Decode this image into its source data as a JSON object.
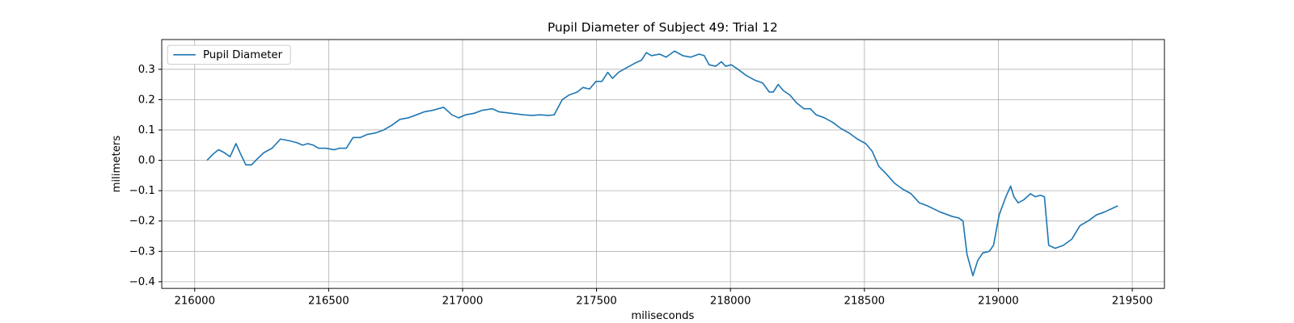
{
  "chart_data": {
    "type": "line",
    "title": "Pupil Diameter of Subject 49: Trial 12",
    "x_label": "miliseconds",
    "y_label": "milimeters",
    "x": [
      216046,
      216068,
      216089,
      216111,
      216132,
      216154,
      216172,
      216191,
      216212,
      216234,
      216258,
      216289,
      216320,
      216351,
      216382,
      216403,
      216422,
      216443,
      216462,
      216489,
      216520,
      216542,
      216566,
      216591,
      216618,
      216643,
      216674,
      216705,
      216735,
      216766,
      216797,
      216828,
      216858,
      216889,
      216929,
      216960,
      216985,
      217012,
      217043,
      217074,
      217111,
      217135,
      217182,
      217228,
      217258,
      217289,
      217320,
      217342,
      217372,
      217397,
      217428,
      217449,
      217474,
      217498,
      217520,
      217542,
      217560,
      217582,
      217612,
      217643,
      217668,
      217686,
      217705,
      217735,
      217760,
      217791,
      217822,
      217852,
      217883,
      217902,
      217920,
      217945,
      217966,
      217982,
      218003,
      218028,
      218058,
      218089,
      218120,
      218145,
      218160,
      218178,
      218197,
      218222,
      218246,
      218274,
      218298,
      218320,
      218351,
      218382,
      218412,
      218443,
      218474,
      218505,
      218529,
      218554,
      218582,
      218612,
      218643,
      218674,
      218705,
      218735,
      218782,
      218828,
      218852,
      218868,
      218883,
      218905,
      218923,
      218942,
      218966,
      218982,
      219003,
      219028,
      219046,
      219058,
      219074,
      219095,
      219120,
      219138,
      219157,
      219172,
      219188,
      219212,
      219243,
      219274,
      219305,
      219335,
      219366,
      219397,
      219446
    ],
    "series": [
      {
        "name": "Pupil Diameter",
        "color": "#1f77b4",
        "values": [
          0.0,
          0.02,
          0.035,
          0.025,
          0.012,
          0.055,
          0.02,
          -0.015,
          -0.015,
          0.005,
          0.025,
          0.04,
          0.07,
          0.065,
          0.058,
          0.05,
          0.055,
          0.05,
          0.04,
          0.04,
          0.035,
          0.04,
          0.04,
          0.075,
          0.075,
          0.085,
          0.09,
          0.1,
          0.115,
          0.135,
          0.14,
          0.15,
          0.16,
          0.165,
          0.175,
          0.15,
          0.14,
          0.15,
          0.155,
          0.165,
          0.17,
          0.16,
          0.155,
          0.15,
          0.148,
          0.15,
          0.148,
          0.15,
          0.2,
          0.215,
          0.225,
          0.24,
          0.235,
          0.26,
          0.26,
          0.29,
          0.27,
          0.29,
          0.305,
          0.32,
          0.33,
          0.355,
          0.345,
          0.35,
          0.34,
          0.36,
          0.345,
          0.34,
          0.35,
          0.345,
          0.315,
          0.31,
          0.325,
          0.31,
          0.315,
          0.3,
          0.28,
          0.265,
          0.255,
          0.225,
          0.225,
          0.25,
          0.23,
          0.215,
          0.19,
          0.17,
          0.17,
          0.15,
          0.14,
          0.125,
          0.105,
          0.09,
          0.07,
          0.055,
          0.03,
          -0.02,
          -0.045,
          -0.075,
          -0.095,
          -0.11,
          -0.14,
          -0.15,
          -0.17,
          -0.185,
          -0.19,
          -0.2,
          -0.31,
          -0.38,
          -0.33,
          -0.305,
          -0.3,
          -0.28,
          -0.18,
          -0.12,
          -0.085,
          -0.12,
          -0.14,
          -0.13,
          -0.11,
          -0.12,
          -0.115,
          -0.12,
          -0.28,
          -0.29,
          -0.28,
          -0.26,
          -0.215,
          -0.2,
          -0.18,
          -0.17,
          -0.15
        ]
      }
    ],
    "xlim": [
      215877,
      219620
    ],
    "xticks": [
      216000,
      216500,
      217000,
      217500,
      218000,
      218500,
      219000,
      219500
    ],
    "ylim": [
      -0.422,
      0.398
    ],
    "yticks": [
      {
        "value": -0.4,
        "label": "−0.4"
      },
      {
        "value": -0.3,
        "label": "−0.3"
      },
      {
        "value": -0.2,
        "label": "−0.2"
      },
      {
        "value": -0.1,
        "label": "−0.1"
      },
      {
        "value": 0,
        "label": "0.0"
      },
      0.1,
      0.2,
      0.3
    ],
    "grid": true,
    "legend": "upper left"
  }
}
